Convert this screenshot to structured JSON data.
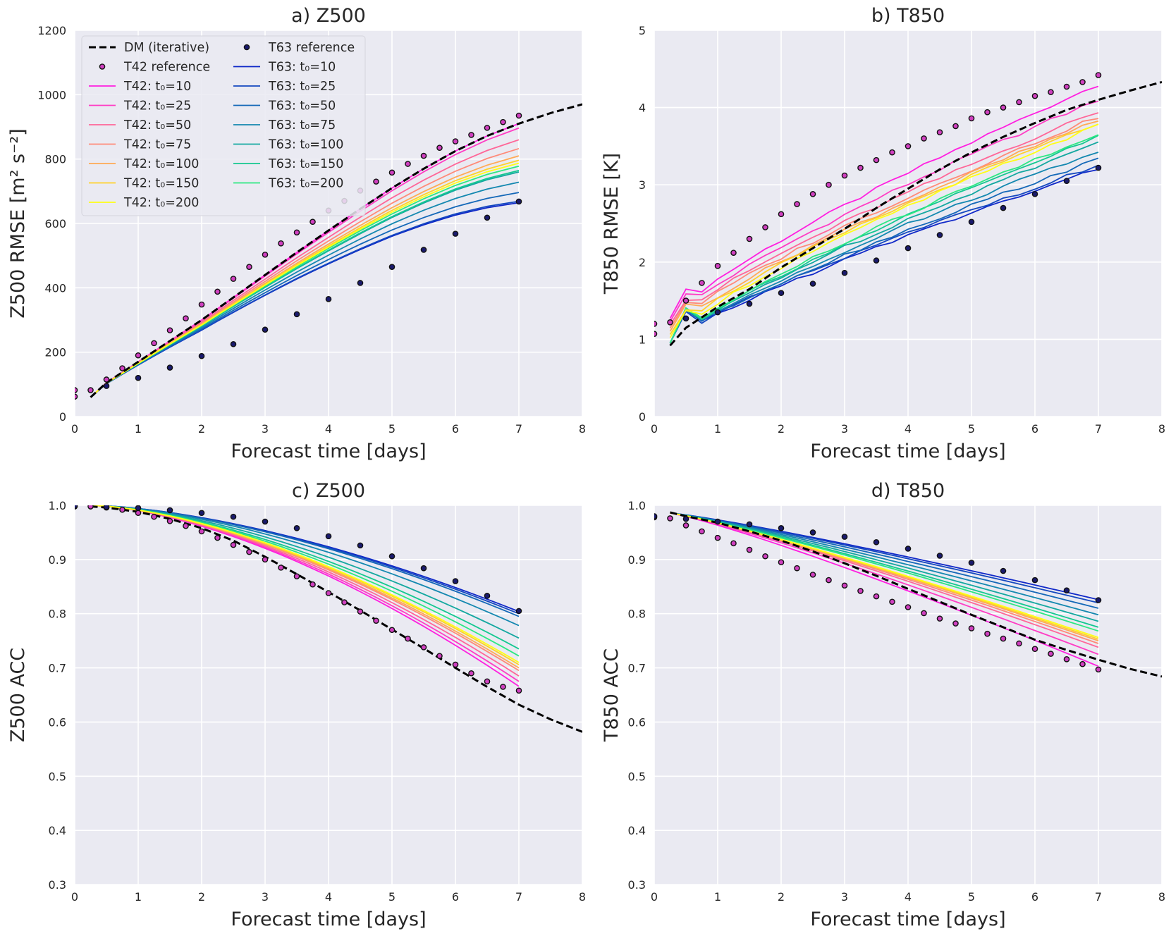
{
  "chart_data": [
    {
      "type": "line",
      "title": "a) Z500",
      "xlabel": "Forecast time [days]",
      "ylabel": "Z500 RMSE [m² s⁻²]",
      "xlim": [
        0,
        8
      ],
      "ylim": [
        0,
        1200
      ],
      "xticks": [
        0,
        1,
        2,
        3,
        4,
        5,
        6,
        7,
        8
      ],
      "yticks": [
        0,
        200,
        400,
        600,
        800,
        1000,
        1200
      ],
      "xtick_labels": [
        "0",
        "1",
        "2",
        "3",
        "4",
        "5",
        "6",
        "7",
        "8"
      ],
      "ytick_labels": [
        "0",
        "200",
        "400",
        "600",
        "800",
        "1000",
        "1200"
      ],
      "legend": "upper left",
      "ref_t42": {
        "x": [
          0,
          0.25,
          0.5,
          0.75,
          1,
          1.25,
          1.5,
          1.75,
          2,
          2.25,
          2.5,
          2.75,
          3,
          3.25,
          3.5,
          3.75,
          4,
          4.25,
          4.5,
          4.75,
          5,
          5.25,
          5.5,
          5.75,
          6,
          6.25,
          6.5,
          6.75,
          7
        ],
        "y": [
          82,
          82,
          115,
          150,
          190,
          228,
          268,
          305,
          348,
          388,
          428,
          465,
          503,
          538,
          572,
          605,
          640,
          670,
          702,
          730,
          758,
          785,
          810,
          835,
          855,
          875,
          897,
          915,
          935
        ]
      },
      "ref_t42_extra": {
        "x": [
          0
        ],
        "y": [
          62
        ]
      },
      "ref_t63": {
        "x": [
          0.5,
          1,
          1.5,
          2,
          2.5,
          3,
          3.5,
          4,
          4.5,
          5,
          5.5,
          6,
          6.5,
          7
        ],
        "y": [
          95,
          120,
          152,
          188,
          225,
          270,
          318,
          365,
          415,
          465,
          518,
          568,
          618,
          668
        ]
      },
      "dm_iterative": {
        "x": [
          0.25,
          0.5,
          1,
          1.5,
          2,
          2.5,
          3,
          3.5,
          4,
          4.5,
          5,
          5.5,
          6,
          6.5,
          7,
          7.5,
          8
        ],
        "y": [
          60,
          105,
          170,
          235,
          300,
          370,
          440,
          510,
          578,
          645,
          710,
          770,
          825,
          872,
          910,
          943,
          970
        ]
      },
      "series_t42": [
        {
          "name": "T42: t₀=10",
          "scale": 1.0,
          "color": "#ff1fe0"
        },
        {
          "name": "T42: t₀=25",
          "scale": 0.985,
          "color": "#ff3cc4"
        },
        {
          "name": "T42: t₀=50",
          "scale": 0.945,
          "color": "#ff6698"
        },
        {
          "name": "T42: t₀=75",
          "scale": 0.915,
          "color": "#ff8a78"
        },
        {
          "name": "T42: t₀=100",
          "scale": 0.89,
          "color": "#ffaa55"
        },
        {
          "name": "T42: t₀=150",
          "scale": 0.875,
          "color": "#ffd22a"
        },
        {
          "name": "T42: t₀=200",
          "scale": 0.865,
          "color": "#ffff14"
        }
      ],
      "series_t63": [
        {
          "name": "T63: t₀=10",
          "scale": 0.73,
          "color": "#1028c8"
        },
        {
          "name": "T63: t₀=25",
          "scale": 0.735,
          "color": "#1448c0"
        },
        {
          "name": "T63: t₀=50",
          "scale": 0.765,
          "color": "#1468b8"
        },
        {
          "name": "T63: t₀=75",
          "scale": 0.8,
          "color": "#1488b0"
        },
        {
          "name": "T63: t₀=100",
          "scale": 0.835,
          "color": "#14a8a0"
        },
        {
          "name": "T63: t₀=150",
          "scale": 0.84,
          "color": "#14c890"
        },
        {
          "name": "T63: t₀=200",
          "scale": 0.855,
          "color": "#2ce882"
        }
      ]
    },
    {
      "type": "line",
      "title": "b) T850",
      "xlabel": "Forecast time [days]",
      "ylabel": "T850 RMSE [K]",
      "xlim": [
        0,
        8
      ],
      "ylim": [
        0,
        5
      ],
      "xticks": [
        0,
        1,
        2,
        3,
        4,
        5,
        6,
        7,
        8
      ],
      "yticks": [
        0,
        1,
        2,
        3,
        4,
        5
      ],
      "xtick_labels": [
        "0",
        "1",
        "2",
        "3",
        "4",
        "5",
        "6",
        "7",
        "8"
      ],
      "ytick_labels": [
        "0",
        "1",
        "2",
        "3",
        "4",
        "5"
      ],
      "ref_t42": {
        "x": [
          0,
          0.25,
          0.5,
          0.75,
          1,
          1.25,
          1.5,
          1.75,
          2,
          2.25,
          2.5,
          2.75,
          3,
          3.25,
          3.5,
          3.75,
          4,
          4.25,
          4.5,
          4.75,
          5,
          5.25,
          5.5,
          5.75,
          6,
          6.25,
          6.5,
          6.75,
          7
        ],
        "y": [
          1.2,
          1.22,
          1.5,
          1.73,
          1.95,
          2.12,
          2.3,
          2.45,
          2.62,
          2.75,
          2.88,
          3.0,
          3.12,
          3.22,
          3.32,
          3.42,
          3.5,
          3.6,
          3.68,
          3.76,
          3.86,
          3.94,
          4.0,
          4.07,
          4.15,
          4.2,
          4.27,
          4.33,
          4.42
        ]
      },
      "ref_t42_extra": {
        "x": [
          0
        ],
        "y": [
          1.07
        ]
      },
      "ref_t63": {
        "x": [
          0.5,
          1,
          1.5,
          2,
          2.5,
          3,
          3.5,
          4,
          4.5,
          5,
          5.5,
          6,
          6.5,
          7
        ],
        "y": [
          1.27,
          1.35,
          1.46,
          1.6,
          1.72,
          1.86,
          2.02,
          2.18,
          2.35,
          2.52,
          2.7,
          2.88,
          3.05,
          3.22
        ]
      },
      "dm_iterative": {
        "x": [
          0.25,
          0.5,
          1,
          1.5,
          2,
          2.5,
          3,
          3.5,
          4,
          4.5,
          5,
          5.5,
          6,
          6.5,
          7,
          7.5,
          8
        ],
        "y": [
          0.92,
          1.15,
          1.42,
          1.65,
          1.93,
          2.18,
          2.43,
          2.7,
          2.95,
          3.2,
          3.42,
          3.62,
          3.8,
          3.97,
          4.1,
          4.22,
          4.33
        ]
      },
      "series_t42": [
        {
          "name": "T42: t₀=10",
          "end": 4.3
        },
        {
          "name": "T42: t₀=25",
          "end": 4.1
        },
        {
          "name": "T42: t₀=50",
          "end": 3.95
        },
        {
          "name": "T42: t₀=75",
          "end": 3.88
        },
        {
          "name": "T42: t₀=100",
          "end": 3.83
        },
        {
          "name": "T42: t₀=150",
          "end": 3.8
        },
        {
          "name": "T42: t₀=200",
          "end": 3.77
        }
      ],
      "series_t63": [
        {
          "name": "T63: t₀=10",
          "end": 3.2
        },
        {
          "name": "T63: t₀=25",
          "end": 3.25
        },
        {
          "name": "T63: t₀=50",
          "end": 3.33
        },
        {
          "name": "T63: t₀=75",
          "end": 3.44
        },
        {
          "name": "T63: t₀=100",
          "end": 3.55
        },
        {
          "name": "T63: t₀=150",
          "end": 3.62
        },
        {
          "name": "T63: t₀=200",
          "end": 3.66
        }
      ]
    },
    {
      "type": "line",
      "title": "c) Z500",
      "xlabel": "Forecast time [days]",
      "ylabel": "Z500 ACC",
      "xlim": [
        0,
        8
      ],
      "ylim": [
        0.3,
        1.0
      ],
      "xticks": [
        0,
        1,
        2,
        3,
        4,
        5,
        6,
        7,
        8
      ],
      "yticks": [
        0.3,
        0.4,
        0.5,
        0.6,
        0.7,
        0.8,
        0.9,
        1.0
      ],
      "xtick_labels": [
        "0",
        "1",
        "2",
        "3",
        "4",
        "5",
        "6",
        "7",
        "8"
      ],
      "ytick_labels": [
        "0.3",
        "0.4",
        "0.5",
        "0.6",
        "0.7",
        "0.8",
        "0.9",
        "1.0"
      ],
      "ref_t42": {
        "x": [
          0,
          0.25,
          0.5,
          0.75,
          1,
          1.25,
          1.5,
          1.75,
          2,
          2.25,
          2.5,
          2.75,
          3,
          3.25,
          3.5,
          3.75,
          4,
          4.25,
          4.5,
          4.75,
          5,
          5.25,
          5.5,
          5.75,
          6,
          6.25,
          6.5,
          6.75,
          7
        ],
        "y": [
          0.998,
          0.998,
          0.996,
          0.992,
          0.986,
          0.979,
          0.971,
          0.962,
          0.952,
          0.94,
          0.927,
          0.914,
          0.9,
          0.885,
          0.869,
          0.854,
          0.838,
          0.821,
          0.804,
          0.787,
          0.77,
          0.754,
          0.738,
          0.722,
          0.706,
          0.69,
          0.675,
          0.665,
          0.658
        ]
      },
      "ref_t63": {
        "x": [
          0,
          0.5,
          1,
          1.5,
          2,
          2.5,
          3,
          3.5,
          4,
          4.5,
          5,
          5.5,
          6,
          6.5,
          7
        ],
        "y": [
          0.999,
          0.997,
          0.995,
          0.991,
          0.986,
          0.979,
          0.97,
          0.958,
          0.943,
          0.926,
          0.906,
          0.884,
          0.86,
          0.833,
          0.805
        ]
      },
      "dm_iterative": {
        "x": [
          0.25,
          0.5,
          1,
          1.5,
          2,
          2.5,
          3,
          3.5,
          4,
          4.5,
          5,
          5.5,
          6,
          6.5,
          7,
          7.5,
          8
        ],
        "y": [
          0.998,
          0.996,
          0.988,
          0.975,
          0.958,
          0.935,
          0.905,
          0.873,
          0.84,
          0.806,
          0.771,
          0.736,
          0.7,
          0.665,
          0.632,
          0.605,
          0.582
        ]
      },
      "series_t42": [
        {
          "name": "T42: t₀=10",
          "end": 0.666
        },
        {
          "name": "T42: t₀=25",
          "end": 0.675
        },
        {
          "name": "T42: t₀=50",
          "end": 0.685
        },
        {
          "name": "T42: t₀=75",
          "end": 0.695
        },
        {
          "name": "T42: t₀=100",
          "end": 0.7
        },
        {
          "name": "T42: t₀=150",
          "end": 0.706
        },
        {
          "name": "T42: t₀=200",
          "end": 0.71
        }
      ],
      "series_t63": [
        {
          "name": "T63: t₀=10",
          "end": 0.804
        },
        {
          "name": "T63: t₀=25",
          "end": 0.8
        },
        {
          "name": "T63: t₀=50",
          "end": 0.795
        },
        {
          "name": "T63: t₀=75",
          "end": 0.778
        },
        {
          "name": "T63: t₀=100",
          "end": 0.755
        },
        {
          "name": "T63: t₀=150",
          "end": 0.735
        },
        {
          "name": "T63: t₀=200",
          "end": 0.722
        }
      ]
    },
    {
      "type": "line",
      "title": "d) T850",
      "xlabel": "Forecast time [days]",
      "ylabel": "T850 ACC",
      "xlim": [
        0,
        8
      ],
      "ylim": [
        0.3,
        1.0
      ],
      "xticks": [
        0,
        1,
        2,
        3,
        4,
        5,
        6,
        7,
        8
      ],
      "yticks": [
        0.3,
        0.4,
        0.5,
        0.6,
        0.7,
        0.8,
        0.9,
        1.0
      ],
      "xtick_labels": [
        "0",
        "1",
        "2",
        "3",
        "4",
        "5",
        "6",
        "7",
        "8"
      ],
      "ytick_labels": [
        "0.3",
        "0.4",
        "0.5",
        "0.6",
        "0.7",
        "0.8",
        "0.9",
        "1.0"
      ],
      "ref_t42": {
        "x": [
          0,
          0.25,
          0.5,
          0.75,
          1,
          1.25,
          1.5,
          1.75,
          2,
          2.25,
          2.5,
          2.75,
          3,
          3.25,
          3.5,
          3.75,
          4,
          4.25,
          4.5,
          4.75,
          5,
          5.25,
          5.5,
          5.75,
          6,
          6.25,
          6.5,
          6.75,
          7
        ],
        "y": [
          0.978,
          0.976,
          0.963,
          0.952,
          0.94,
          0.93,
          0.918,
          0.906,
          0.895,
          0.884,
          0.872,
          0.862,
          0.852,
          0.842,
          0.832,
          0.822,
          0.812,
          0.801,
          0.791,
          0.782,
          0.773,
          0.763,
          0.754,
          0.745,
          0.735,
          0.726,
          0.716,
          0.707,
          0.697
        ]
      },
      "ref_t63": {
        "x": [
          0,
          0.5,
          1,
          1.5,
          2,
          2.5,
          3,
          3.5,
          4,
          4.5,
          5,
          5.5,
          6,
          6.5,
          7
        ],
        "y": [
          0.98,
          0.975,
          0.97,
          0.965,
          0.958,
          0.95,
          0.942,
          0.932,
          0.92,
          0.907,
          0.894,
          0.879,
          0.862,
          0.843,
          0.825
        ]
      },
      "dm_iterative": {
        "x": [
          0.25,
          0.5,
          1,
          1.5,
          2,
          2.5,
          3,
          3.5,
          4,
          4.5,
          5,
          5.5,
          6,
          6.5,
          7,
          7.5,
          8
        ],
        "y": [
          0.987,
          0.98,
          0.968,
          0.952,
          0.935,
          0.915,
          0.893,
          0.87,
          0.846,
          0.822,
          0.798,
          0.775,
          0.752,
          0.733,
          0.715,
          0.698,
          0.684
        ]
      },
      "series_t42": [
        {
          "name": "T42: t₀=10",
          "end": 0.703
        },
        {
          "name": "T42: t₀=25",
          "end": 0.725
        },
        {
          "name": "T42: t₀=50",
          "end": 0.738
        },
        {
          "name": "T42: t₀=75",
          "end": 0.745
        },
        {
          "name": "T42: t₀=100",
          "end": 0.75
        },
        {
          "name": "T42: t₀=150",
          "end": 0.753
        },
        {
          "name": "T42: t₀=200",
          "end": 0.756
        }
      ],
      "series_t63": [
        {
          "name": "T63: t₀=10",
          "end": 0.826
        },
        {
          "name": "T63: t₀=25",
          "end": 0.82
        },
        {
          "name": "T63: t₀=50",
          "end": 0.81
        },
        {
          "name": "T63: t₀=75",
          "end": 0.798
        },
        {
          "name": "T63: t₀=100",
          "end": 0.786
        },
        {
          "name": "T63: t₀=150",
          "end": 0.775
        },
        {
          "name": "T63: t₀=200",
          "end": 0.768
        }
      ]
    }
  ],
  "legend": {
    "dm_label": "DM (iterative)",
    "t42_ref_label": "T42 reference",
    "t63_ref_label": "T63 reference",
    "t42_labels": [
      "T42: t₀=10",
      "T42: t₀=25",
      "T42: t₀=50",
      "T42: t₀=75",
      "T42: t₀=100",
      "T42: t₀=150",
      "T42: t₀=200"
    ],
    "t63_labels": [
      "T63: t₀=10",
      "T63: t₀=25",
      "T63: t₀=50",
      "T63: t₀=75",
      "T63: t₀=100",
      "T63: t₀=150",
      "T63: t₀=200"
    ]
  },
  "colors": {
    "plot_bg": "#eaeaf2",
    "grid": "#ffffff",
    "dm": "#000000",
    "t42_ref_fill": "#d040c0",
    "t63_ref_fill": "#1a1a6e",
    "t42": [
      "#ff1fe0",
      "#ff3cc4",
      "#ff6698",
      "#ff8a78",
      "#ffaa55",
      "#ffd22a",
      "#ffff14"
    ],
    "t63": [
      "#1028c8",
      "#1448c0",
      "#1468b8",
      "#1488b0",
      "#14a8a0",
      "#14c890",
      "#2ce882"
    ]
  }
}
